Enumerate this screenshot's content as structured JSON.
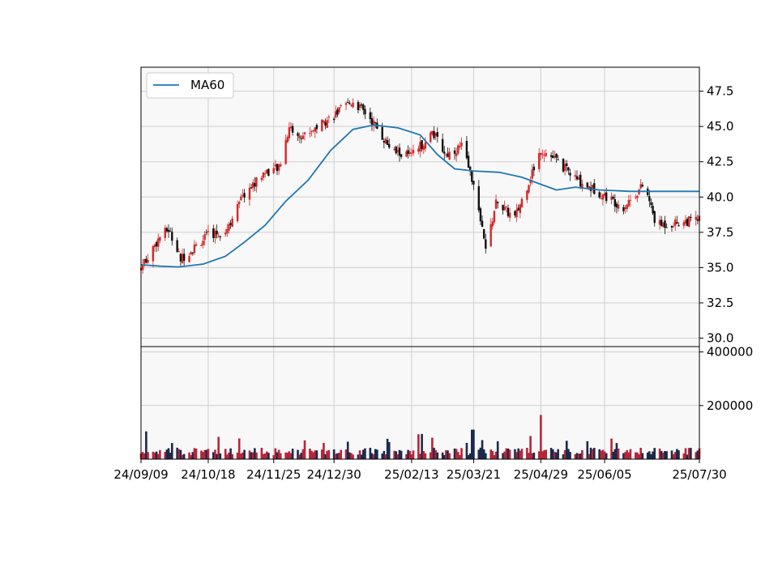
{
  "chart_data": {
    "type": "candlestick",
    "legend": {
      "placement": "top-left",
      "entries": [
        {
          "name": "MA60",
          "color": "#1f77b4"
        }
      ]
    },
    "grid": true,
    "colors": {
      "up": "#d62728",
      "down": "#111111",
      "ma": "#1f77b4",
      "volume_up": "#b5263a",
      "volume_down": "#1b2a4a",
      "panel_bg": "#f8f8f8",
      "grid": "#cfcfcf"
    },
    "x_range": [
      "24/09/09",
      "25/07/30"
    ],
    "x_ticks": [
      "24/09/09",
      "24/10/18",
      "24/11/25",
      "24/12/30",
      "25/02/13",
      "25/03/21",
      "25/04/29",
      "25/06/05",
      "25/07/30"
    ],
    "price_panel": {
      "ylim": [
        29.4,
        49.2
      ],
      "y_ticks": [
        "30.0",
        "32.5",
        "35.0",
        "37.5",
        "40.0",
        "42.5",
        "45.0",
        "47.5"
      ],
      "ma60": [
        [
          "24/09/09",
          35.2
        ],
        [
          "24/09/20",
          35.1
        ],
        [
          "24/10/01",
          35.05
        ],
        [
          "24/10/15",
          35.25
        ],
        [
          "24/10/28",
          35.8
        ],
        [
          "24/11/08",
          36.8
        ],
        [
          "24/11/20",
          38.0
        ],
        [
          "24/12/02",
          39.7
        ],
        [
          "24/12/15",
          41.2
        ],
        [
          "24/12/28",
          43.3
        ],
        [
          "25/01/10",
          44.8
        ],
        [
          "25/01/22",
          45.1
        ],
        [
          "25/02/05",
          44.9
        ],
        [
          "25/02/18",
          44.4
        ],
        [
          "25/02/28",
          43.0
        ],
        [
          "25/03/10",
          42.0
        ],
        [
          "25/03/21",
          41.85
        ],
        [
          "25/04/05",
          41.75
        ],
        [
          "25/04/18",
          41.4
        ],
        [
          "25/04/29",
          40.9
        ],
        [
          "25/05/08",
          40.5
        ],
        [
          "25/05/19",
          40.7
        ],
        [
          "25/06/02",
          40.5
        ],
        [
          "25/06/12",
          40.45
        ],
        [
          "25/06/20",
          40.4
        ],
        [
          "25/07/30",
          40.4
        ]
      ]
    },
    "volume_panel": {
      "ylim": [
        0,
        420000
      ],
      "y_ticks": [
        "200000",
        "400000"
      ],
      "notable": [
        [
          "25/04/29",
          165000
        ],
        [
          "25/03/21",
          120000
        ],
        [
          "24/11/25",
          110000
        ]
      ]
    }
  }
}
